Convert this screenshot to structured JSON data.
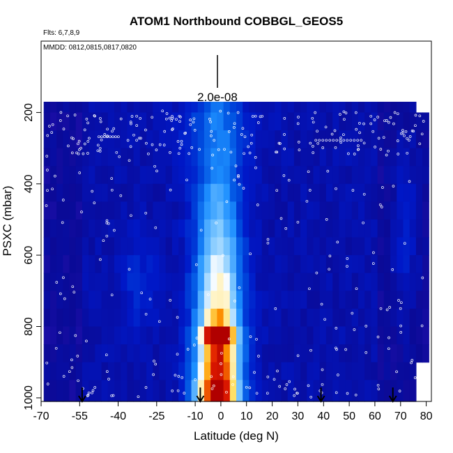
{
  "chart_data": {
    "type": "heatmap",
    "title": "ATOM1 Northbound COBBGL_GEOS5",
    "subtitle_flights": "Flts: 6,7,8,9",
    "subtitle_dates": "MMDD: 0812,0815,0817,0820",
    "scale_label": "2.0e-08",
    "xlabel": "Latitude (deg N)",
    "ylabel": "PSXC (mbar)",
    "xlim": [
      -70,
      82
    ],
    "ylim": [
      1010,
      0
    ],
    "x_ticks": [
      -70,
      -55,
      -40,
      -25,
      -10,
      0,
      10,
      20,
      30,
      40,
      50,
      60,
      70,
      80
    ],
    "x_tick_labels": [
      "-70",
      "-55",
      "-40",
      "-25",
      "-10",
      "0",
      "10",
      "20",
      "30",
      "40",
      "50",
      "60",
      "70",
      "80"
    ],
    "y_ticks": [
      200,
      400,
      600,
      800,
      1000
    ],
    "y_tick_labels": [
      "200",
      "400",
      "600",
      "800",
      "1000"
    ],
    "flight_markers_lat": [
      -54,
      -8,
      39,
      67
    ],
    "colorscale": [
      "#7a20e6",
      "#3a16c8",
      "#0a0a96",
      "#0018c8",
      "#0050e0",
      "#1e90ff",
      "#7ec8ff",
      "#ffffff",
      "#ffe066",
      "#ff9a00",
      "#e01b00",
      "#b00000"
    ],
    "pressure_levels": [
      175,
      225,
      275,
      325,
      375,
      425,
      475,
      525,
      575,
      625,
      675,
      725,
      775,
      825,
      875,
      925,
      975,
      1010
    ],
    "data_extent": {
      "lat_min": -69,
      "lat_max": 80,
      "p_top": 170
    },
    "grid": false,
    "legend": "none"
  }
}
